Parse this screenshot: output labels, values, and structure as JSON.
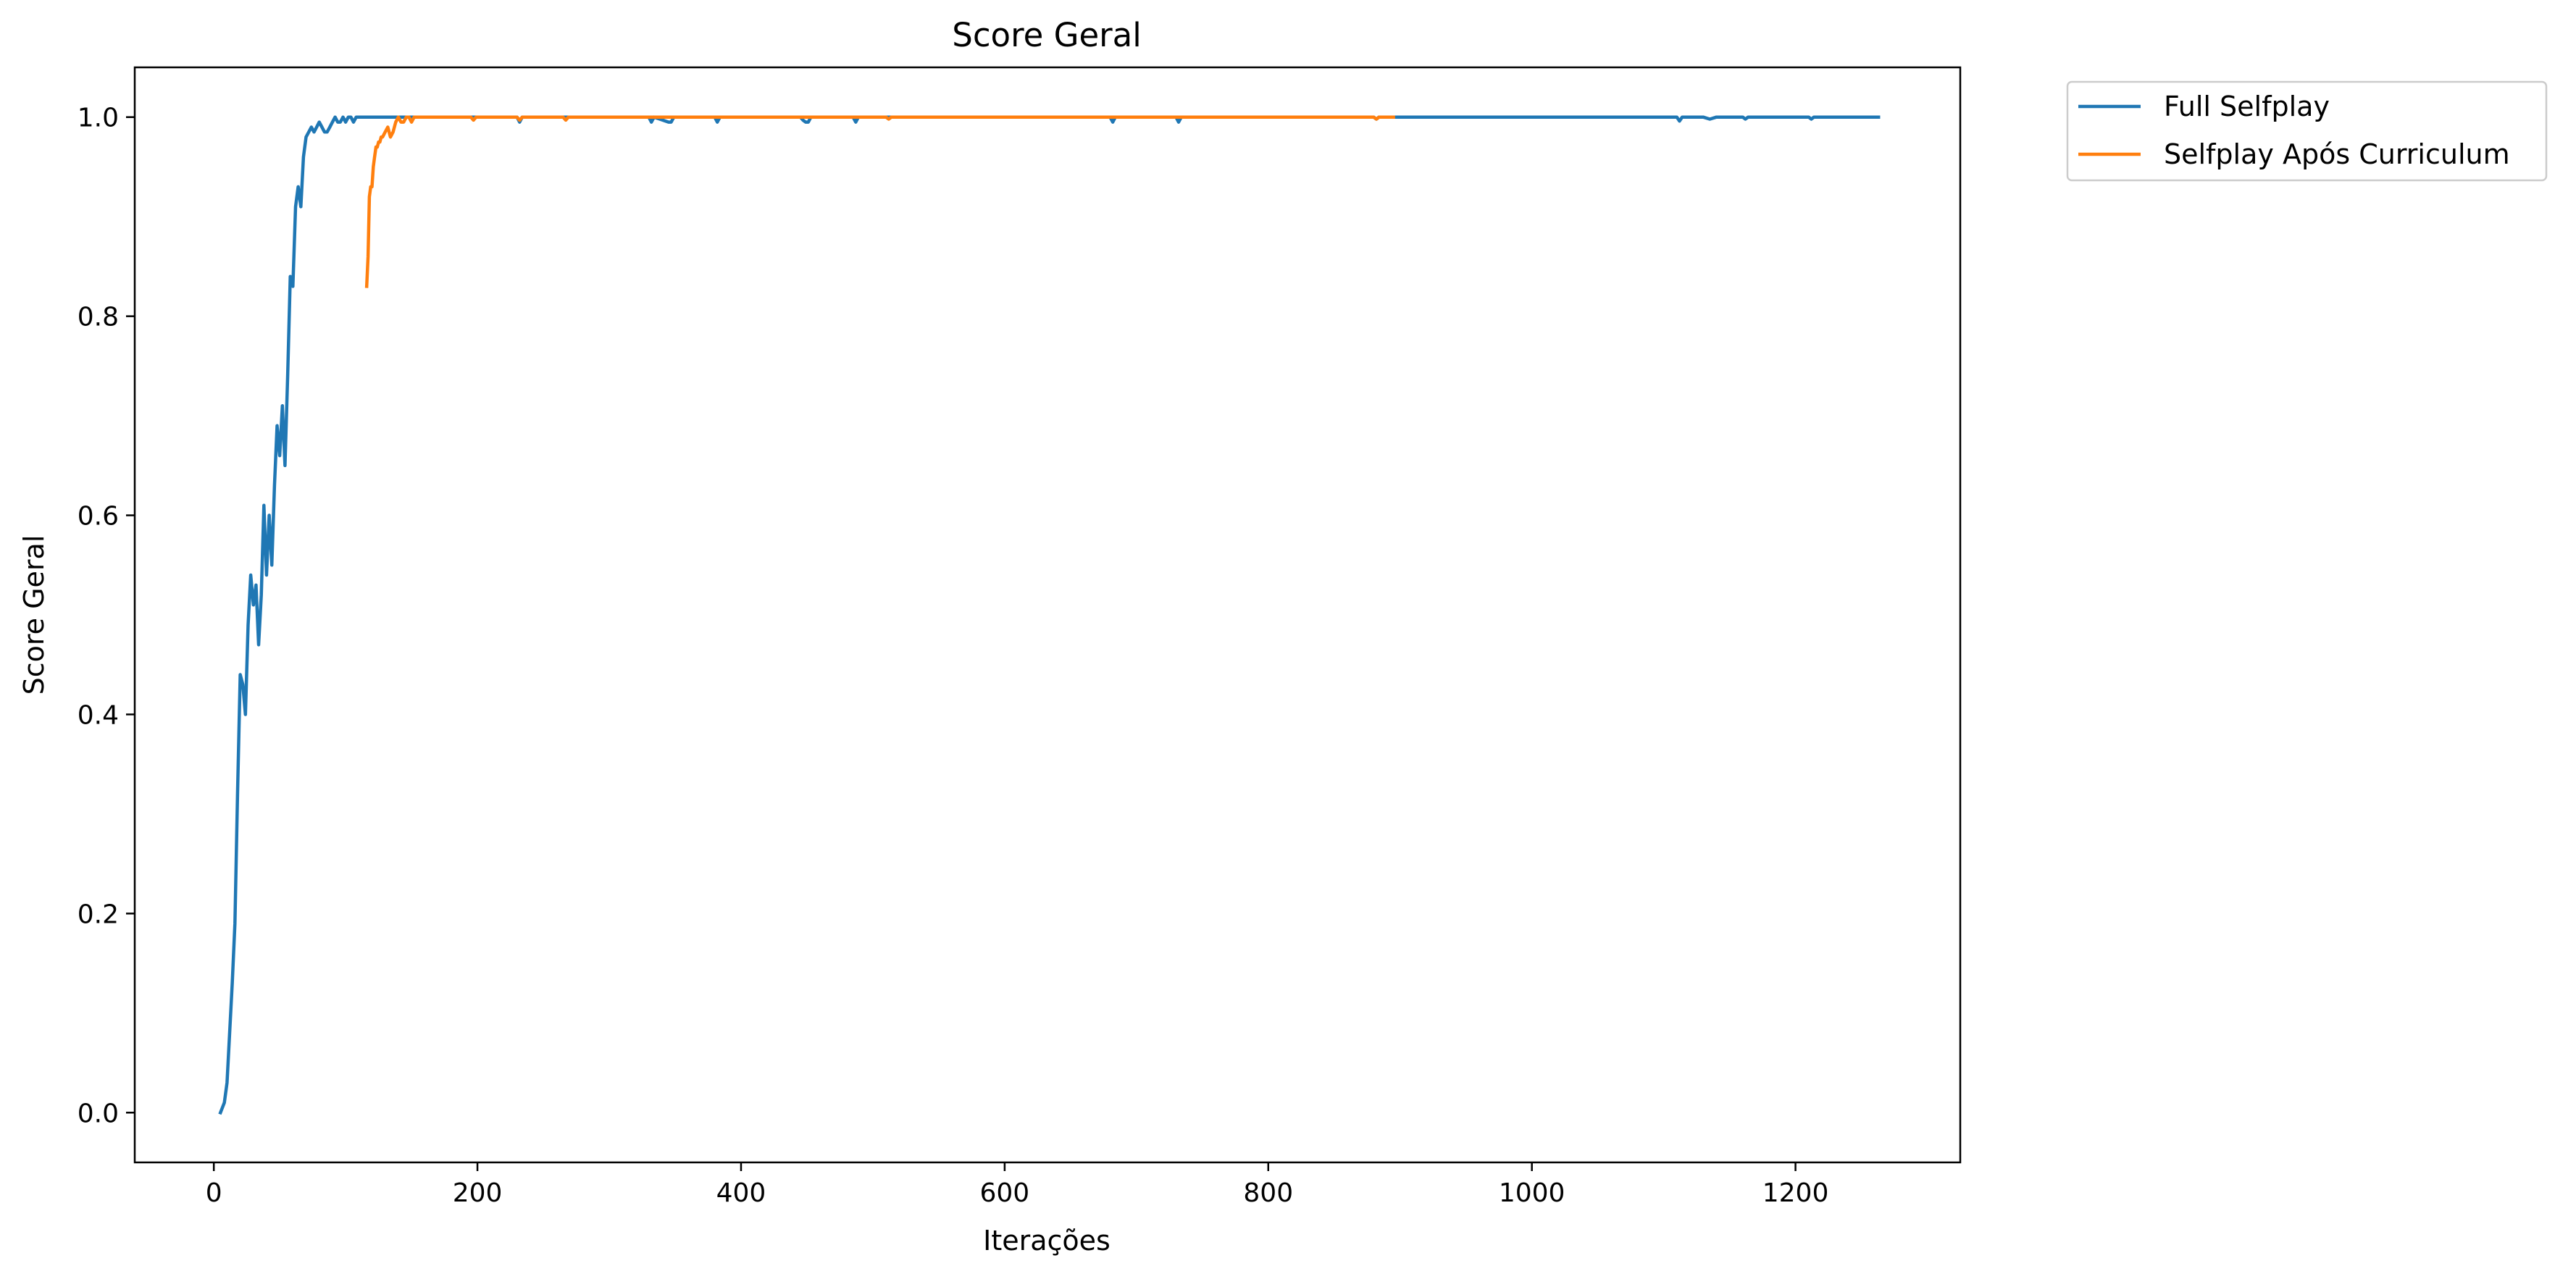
{
  "chart_data": {
    "type": "line",
    "title": "Score Geral",
    "xlabel": "Iterações",
    "ylabel": "Score Geral",
    "xlim": [
      -60,
      1325
    ],
    "ylim": [
      -0.05,
      1.05
    ],
    "xticks": [
      0,
      200,
      400,
      600,
      800,
      1000,
      1200
    ],
    "yticks": [
      0.0,
      0.2,
      0.4,
      0.6,
      0.8,
      1.0
    ],
    "xtick_labels": [
      "0",
      "200",
      "400",
      "600",
      "800",
      "1000",
      "1200"
    ],
    "ytick_labels": [
      "0.0",
      "0.2",
      "0.4",
      "0.6",
      "0.8",
      "1.0"
    ],
    "grid": false,
    "legend": "outside-top-right",
    "series": [
      {
        "name": "Full Selfplay",
        "color": "#1f77b4",
        "x": [
          5,
          8,
          10,
          12,
          14,
          16,
          18,
          20,
          22,
          24,
          26,
          28,
          30,
          32,
          34,
          36,
          38,
          40,
          42,
          44,
          46,
          48,
          50,
          52,
          54,
          56,
          58,
          60,
          62,
          64,
          66,
          68,
          70,
          72,
          74,
          76,
          78,
          80,
          82,
          84,
          86,
          88,
          90,
          92,
          94,
          96,
          98,
          100,
          102,
          104,
          106,
          108,
          110,
          112,
          115,
          120,
          130,
          140,
          150,
          160,
          200,
          230,
          232,
          234,
          300,
          330,
          332,
          334,
          345,
          347,
          349,
          380,
          382,
          384,
          445,
          447,
          449,
          451,
          453,
          485,
          487,
          489,
          680,
          682,
          684,
          730,
          732,
          734,
          880,
          882,
          884,
          1110,
          1112,
          1114,
          1130,
          1135,
          1140,
          1145,
          1160,
          1162,
          1164,
          1210,
          1212,
          1214,
          1263
        ],
        "y": [
          0.0,
          0.01,
          0.03,
          0.08,
          0.13,
          0.19,
          0.32,
          0.44,
          0.43,
          0.4,
          0.49,
          0.54,
          0.51,
          0.53,
          0.47,
          0.52,
          0.61,
          0.54,
          0.6,
          0.55,
          0.63,
          0.69,
          0.66,
          0.71,
          0.65,
          0.74,
          0.84,
          0.83,
          0.91,
          0.93,
          0.91,
          0.96,
          0.98,
          0.985,
          0.99,
          0.985,
          0.99,
          0.995,
          0.99,
          0.985,
          0.985,
          0.99,
          0.995,
          1.0,
          0.995,
          0.995,
          1.0,
          0.995,
          1.0,
          1.0,
          0.995,
          1.0,
          1.0,
          1.0,
          1.0,
          1.0,
          1.0,
          1.0,
          1.0,
          1.0,
          1.0,
          1.0,
          0.995,
          1.0,
          1.0,
          1.0,
          0.995,
          1.0,
          0.995,
          0.995,
          1.0,
          1.0,
          0.995,
          1.0,
          1.0,
          0.997,
          0.995,
          0.995,
          1.0,
          1.0,
          0.995,
          1.0,
          1.0,
          0.995,
          1.0,
          1.0,
          0.995,
          1.0,
          1.0,
          0.998,
          1.0,
          1.0,
          0.996,
          1.0,
          1.0,
          0.998,
          1.0,
          1.0,
          1.0,
          0.998,
          1.0,
          1.0,
          0.998,
          1.0,
          1.0
        ]
      },
      {
        "name": "Selfplay Após Curriculum",
        "color": "#ff7f0e",
        "x": [
          116,
          117,
          118,
          119,
          120,
          121,
          122,
          123,
          124,
          125,
          126,
          127,
          128,
          130,
          132,
          134,
          136,
          138,
          140,
          142,
          144,
          146,
          148,
          150,
          152,
          154,
          156,
          158,
          160,
          165,
          170,
          180,
          195,
          197,
          199,
          230,
          232,
          234,
          265,
          267,
          269,
          510,
          512,
          514,
          880,
          882,
          884,
          890,
          895
        ],
        "y": [
          0.83,
          0.86,
          0.92,
          0.93,
          0.93,
          0.95,
          0.96,
          0.97,
          0.97,
          0.975,
          0.975,
          0.98,
          0.98,
          0.985,
          0.99,
          0.98,
          0.985,
          0.995,
          1.0,
          0.995,
          0.995,
          1.0,
          1.0,
          0.995,
          1.0,
          1.0,
          1.0,
          1.0,
          1.0,
          1.0,
          1.0,
          1.0,
          1.0,
          0.997,
          1.0,
          1.0,
          0.997,
          1.0,
          1.0,
          0.997,
          1.0,
          1.0,
          0.998,
          1.0,
          1.0,
          0.998,
          1.0,
          1.0,
          1.0
        ]
      }
    ]
  }
}
